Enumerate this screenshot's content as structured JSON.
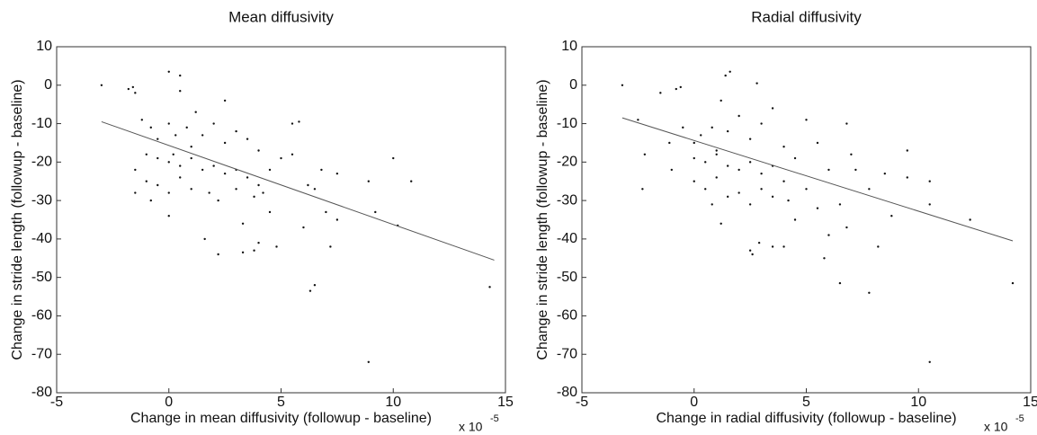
{
  "chart_data": [
    {
      "type": "scatter",
      "title": "Mean diffusivity",
      "x_label": "Change in mean diffusivity (followup - baseline)",
      "y_label": "Change in stride length (followup - baseline)",
      "x_multiplier": "x 10",
      "x_multiplier_exponent": "-5",
      "xlim": [
        -5,
        15
      ],
      "xticks": [
        -5,
        0,
        5,
        10,
        15
      ],
      "ylim": [
        -80,
        10
      ],
      "yticks": [
        -80,
        -70,
        -60,
        -50,
        -40,
        -30,
        -20,
        -10,
        0,
        10
      ],
      "grid": false,
      "color": "#111111",
      "line_color": "#555555",
      "x": [
        -3,
        -1.8,
        -1.6,
        -1.5,
        0,
        0.5,
        0.5,
        1.2,
        2.5,
        -1.2,
        -0.8,
        -0.5,
        0,
        0.3,
        0.8,
        1,
        1.5,
        2,
        2.5,
        3,
        3.5,
        4,
        -1,
        -0.5,
        0,
        0.2,
        0.5,
        1,
        1.5,
        2,
        2.5,
        3,
        3.5,
        4,
        -1.5,
        -1,
        -0.5,
        0,
        0.5,
        1,
        1.8,
        2.2,
        3,
        3.8,
        4.2,
        -1.5,
        -0.8,
        0,
        1.6,
        2.2,
        3.3,
        3.8,
        4,
        4.8,
        3.3,
        5.5,
        5.8,
        5.5,
        6.2,
        6.5,
        6.8,
        7.5,
        7,
        7.2,
        6.5,
        6.3,
        7.5,
        8.9,
        9.2,
        10,
        10.8,
        10.2,
        8.9,
        14.3,
        5,
        4.5,
        6,
        4.5
      ],
      "values": [
        0,
        -1,
        -0.5,
        -2,
        3.5,
        2.5,
        -1.5,
        -7,
        -4,
        -9,
        -11,
        -14,
        -10,
        -13,
        -11,
        -16,
        -13,
        -10,
        -15,
        -12,
        -14,
        -17,
        -18,
        -19,
        -20,
        -18,
        -21,
        -19,
        -22,
        -21,
        -23,
        -22,
        -24,
        -26,
        -22,
        -25,
        -26,
        -28,
        -24,
        -27,
        -28,
        -30,
        -27,
        -29,
        -28,
        -28,
        -30,
        -34,
        -40,
        -44,
        -43.5,
        -43,
        -41,
        -42,
        -36,
        -10,
        -9.5,
        -18,
        -26,
        -27,
        -22,
        -23,
        -33,
        -42,
        -52,
        -53.5,
        -35,
        -25,
        -33,
        -19,
        -25,
        -36.5,
        -72,
        -52.5,
        -19,
        -22,
        -37,
        -33
      ],
      "fit_x": [
        -3,
        14.5
      ],
      "fit_values": [
        -9.5,
        -45.5
      ]
    },
    {
      "type": "scatter",
      "title": "Radial diffusivity",
      "x_label": "Change in radial diffusivity (followup - baseline)",
      "y_label": "Change in stride length (followup - baseline)",
      "x_multiplier": "x 10",
      "x_multiplier_exponent": "-5",
      "xlim": [
        -5,
        15
      ],
      "xticks": [
        -5,
        0,
        5,
        10,
        15
      ],
      "ylim": [
        -80,
        10
      ],
      "yticks": [
        -80,
        -70,
        -60,
        -50,
        -40,
        -30,
        -20,
        -10,
        0,
        10
      ],
      "grid": false,
      "color": "#111111",
      "line_color": "#555555",
      "x": [
        -3.2,
        -2.5,
        -1.5,
        -0.8,
        -0.6,
        1.4,
        1.6,
        2.8,
        1.2,
        -2.2,
        -2.3,
        -1,
        -1.1,
        -0.5,
        0,
        0.3,
        0.8,
        1,
        1.5,
        2,
        2.5,
        3,
        3.5,
        4,
        0,
        0.5,
        1,
        1.5,
        2,
        2.5,
        3,
        3.5,
        4,
        4.5,
        0,
        0.5,
        1,
        1.5,
        2,
        2.5,
        3,
        3.5,
        4.2,
        0.8,
        1.2,
        2.5,
        2.9,
        3.5,
        4,
        2.6,
        5,
        5.5,
        6.5,
        6.8,
        5.8,
        6.5,
        7.8,
        7,
        6.8,
        7.2,
        7.8,
        8.2,
        8.8,
        8.5,
        9.5,
        9.5,
        10.5,
        10.5,
        12.3,
        10.5,
        14.2,
        5,
        5.5,
        6,
        4.5,
        6
      ],
      "values": [
        0,
        -9,
        -2,
        -1,
        -0.5,
        2.5,
        3.5,
        0.5,
        -4,
        -18,
        -27,
        -22,
        -15,
        -11,
        -15,
        -13,
        -11,
        -17,
        -12,
        -8,
        -14,
        -10,
        -6,
        -16,
        -19,
        -20,
        -18,
        -21,
        -22,
        -20,
        -23,
        -21,
        -25,
        -19,
        -25,
        -27,
        -24,
        -29,
        -28,
        -31,
        -27,
        -29,
        -30,
        -31,
        -36,
        -43,
        -41,
        -42,
        -42,
        -44,
        -27,
        -32,
        -31,
        -37,
        -45,
        -51.5,
        -54,
        -18,
        -10,
        -22,
        -27,
        -42,
        -34,
        -23,
        -17,
        -24,
        -25,
        -31,
        -35,
        -72,
        -51.5,
        -9,
        -15,
        -39,
        -35,
        -22
      ],
      "fit_x": [
        -3.2,
        14.2
      ],
      "fit_values": [
        -8.5,
        -40.5
      ]
    }
  ]
}
